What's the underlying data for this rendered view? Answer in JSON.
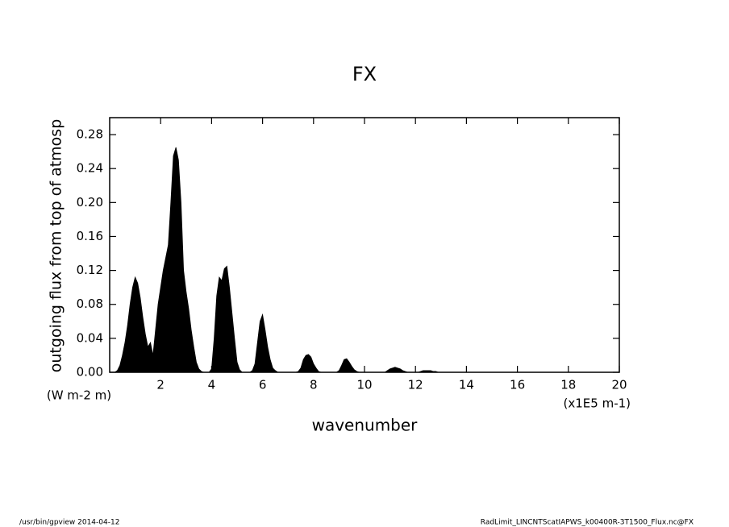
{
  "chart_data": {
    "type": "area",
    "title": "FX",
    "x_label": "wavenumber",
    "x_units": "(x1E5 m-1)",
    "y_label": "outgoing flux from top of atmosp",
    "y_units": "(W m-2 m)",
    "footer_left": "/usr/bin/gpview  2014-04-12",
    "footer_right": "RadLimit_LINCNTScatIAPWS_k00400R-3T1500_Flux.nc@FX",
    "color": "#000000",
    "xlim": [
      0,
      20
    ],
    "xticks": [
      2,
      4,
      6,
      8,
      10,
      12,
      14,
      16,
      18,
      20
    ],
    "ylim": [
      0,
      0.3
    ],
    "yticks": [
      {
        "value": 0,
        "label": "0.00"
      },
      {
        "value": 0.04,
        "label": "0.04"
      },
      {
        "value": 0.08,
        "label": "0.08"
      },
      {
        "value": 0.12,
        "label": "0.12"
      },
      {
        "value": 0.16,
        "label": "0.16"
      },
      {
        "value": 0.2,
        "label": "0.20"
      },
      {
        "value": 0.24,
        "label": "0.24"
      },
      {
        "value": 0.28,
        "label": "0.28"
      }
    ],
    "x": [
      0.0,
      0.1,
      0.2,
      0.3,
      0.4,
      0.5,
      0.6,
      0.7,
      0.8,
      0.9,
      1.0,
      1.1,
      1.2,
      1.3,
      1.4,
      1.5,
      1.6,
      1.7,
      1.8,
      1.9,
      2.0,
      2.1,
      2.2,
      2.3,
      2.4,
      2.5,
      2.6,
      2.7,
      2.8,
      2.9,
      3.0,
      3.1,
      3.2,
      3.3,
      3.4,
      3.5,
      3.6,
      3.7,
      3.8,
      3.9,
      4.0,
      4.1,
      4.2,
      4.3,
      4.4,
      4.5,
      4.6,
      4.7,
      4.8,
      4.9,
      5.0,
      5.1,
      5.2,
      5.3,
      5.4,
      5.5,
      5.6,
      5.7,
      5.8,
      5.9,
      6.0,
      6.1,
      6.2,
      6.3,
      6.4,
      6.5,
      6.6,
      6.7,
      6.8,
      6.9,
      7.0,
      7.1,
      7.2,
      7.3,
      7.4,
      7.5,
      7.6,
      7.7,
      7.8,
      7.9,
      8.0,
      8.1,
      8.2,
      8.3,
      8.4,
      8.5,
      8.6,
      8.7,
      8.8,
      8.9,
      9.0,
      9.1,
      9.2,
      9.3,
      9.4,
      9.5,
      9.6,
      9.7,
      9.8,
      9.9,
      10.0,
      10.1,
      10.2,
      10.3,
      10.4,
      10.5,
      10.6,
      10.7,
      10.8,
      10.9,
      11.0,
      11.1,
      11.2,
      11.3,
      11.4,
      11.5,
      11.6,
      11.7,
      11.8,
      11.9,
      12.0,
      12.1,
      12.2,
      12.3,
      12.4,
      12.5,
      12.6,
      12.7,
      12.8,
      12.9,
      13.0,
      20.0
    ],
    "values": [
      0,
      0,
      0,
      0.002,
      0.008,
      0.02,
      0.035,
      0.055,
      0.08,
      0.1,
      0.112,
      0.105,
      0.088,
      0.065,
      0.045,
      0.03,
      0.035,
      0.02,
      0.05,
      0.08,
      0.1,
      0.12,
      0.135,
      0.15,
      0.2,
      0.255,
      0.265,
      0.25,
      0.2,
      0.12,
      0.095,
      0.075,
      0.05,
      0.03,
      0.012,
      0.004,
      0.001,
      0,
      0,
      0,
      0.004,
      0.04,
      0.09,
      0.112,
      0.108,
      0.122,
      0.125,
      0.1,
      0.07,
      0.04,
      0.012,
      0.003,
      0,
      0,
      0,
      0,
      0.002,
      0.01,
      0.035,
      0.06,
      0.068,
      0.05,
      0.03,
      0.015,
      0.005,
      0.002,
      0,
      0,
      0,
      0,
      0,
      0,
      0,
      0,
      0.001,
      0.005,
      0.015,
      0.02,
      0.021,
      0.018,
      0.01,
      0.005,
      0.001,
      0,
      0,
      0,
      0,
      0,
      0,
      0,
      0.002,
      0.008,
      0.015,
      0.016,
      0.012,
      0.007,
      0.003,
      0.001,
      0,
      0,
      0,
      0,
      0,
      0,
      0,
      0,
      0,
      0,
      0,
      0.002,
      0.004,
      0.005,
      0.006,
      0.005,
      0.004,
      0.002,
      0.001,
      0,
      0,
      0,
      0,
      0,
      0.001,
      0.002,
      0.002,
      0.002,
      0.002,
      0.001,
      0.001,
      0,
      0,
      0
    ]
  }
}
